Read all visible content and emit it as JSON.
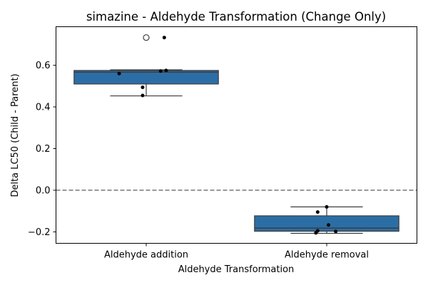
{
  "chart_data": {
    "type": "box",
    "title": "simazine - Aldehyde Transformation (Change Only)",
    "xlabel": "Aldehyde Transformation",
    "ylabel": "Delta LC50 (Child - Parent)",
    "ylim": [
      -0.255,
      0.785
    ],
    "yticks": [
      -0.2,
      0.0,
      0.2,
      0.4,
      0.6
    ],
    "ytick_labels": [
      "−0.2",
      "0.0",
      "0.2",
      "0.4",
      "0.6"
    ],
    "reference_line": {
      "y": 0.0,
      "style": "dashed"
    },
    "box_color": "#2b6ea6",
    "categories": [
      "Aldehyde addition",
      "Aldehyde removal"
    ],
    "groups": [
      {
        "name": "Aldehyde addition",
        "q1": 0.51,
        "median": 0.567,
        "q3": 0.575,
        "whisker_low": 0.453,
        "whisker_high": 0.578,
        "outliers": [
          0.733
        ],
        "points": [
          {
            "jitter": 0.1,
            "y": 0.733
          },
          {
            "jitter": -0.15,
            "y": 0.56
          },
          {
            "jitter": 0.08,
            "y": 0.572
          },
          {
            "jitter": 0.11,
            "y": 0.575
          },
          {
            "jitter": -0.02,
            "y": 0.494
          },
          {
            "jitter": -0.02,
            "y": 0.455
          }
        ]
      },
      {
        "name": "Aldehyde removal",
        "q1": -0.197,
        "median": -0.182,
        "q3": -0.123,
        "whisker_low": -0.207,
        "whisker_high": -0.08,
        "outliers": [],
        "points": [
          {
            "jitter": 0.0,
            "y": -0.08
          },
          {
            "jitter": -0.05,
            "y": -0.105
          },
          {
            "jitter": 0.01,
            "y": -0.167
          },
          {
            "jitter": -0.05,
            "y": -0.195
          },
          {
            "jitter": 0.05,
            "y": -0.198
          },
          {
            "jitter": -0.06,
            "y": -0.205
          }
        ]
      }
    ]
  }
}
